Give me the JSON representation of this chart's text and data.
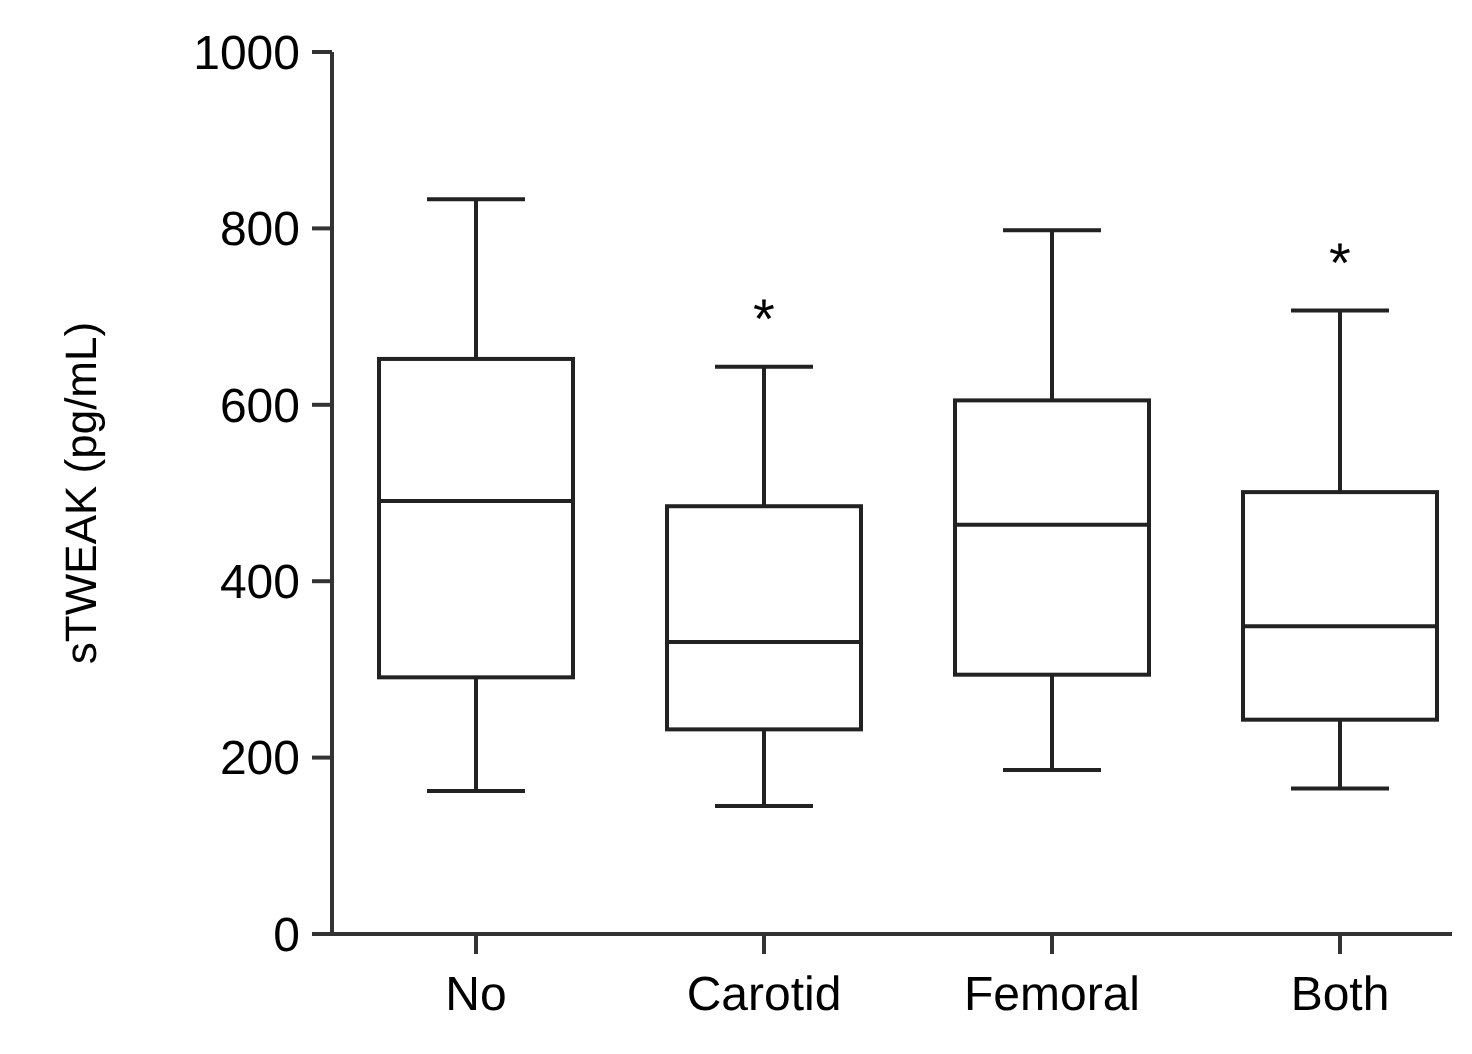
{
  "chart_data": {
    "type": "box",
    "ylabel": "sTWEAK (pg/mL)",
    "categories": [
      "No",
      "Carotid",
      "Femoral",
      "Both"
    ],
    "boxes": [
      {
        "low": 162,
        "q1": 291,
        "median": 491,
        "q3": 652,
        "high": 833
      },
      {
        "low": 145,
        "q1": 232,
        "median": 331,
        "q3": 485,
        "high": 643
      },
      {
        "low": 186,
        "q1": 294,
        "median": 464,
        "q3": 605,
        "high": 798
      },
      {
        "low": 165,
        "q1": 243,
        "median": 349,
        "q3": 501,
        "high": 707
      }
    ],
    "color": "#222222",
    "ylim": [
      0,
      1000
    ],
    "yticks": [
      0,
      200,
      400,
      600,
      800,
      1000
    ],
    "grid": false,
    "annotations": [
      "*",
      "*"
    ]
  }
}
